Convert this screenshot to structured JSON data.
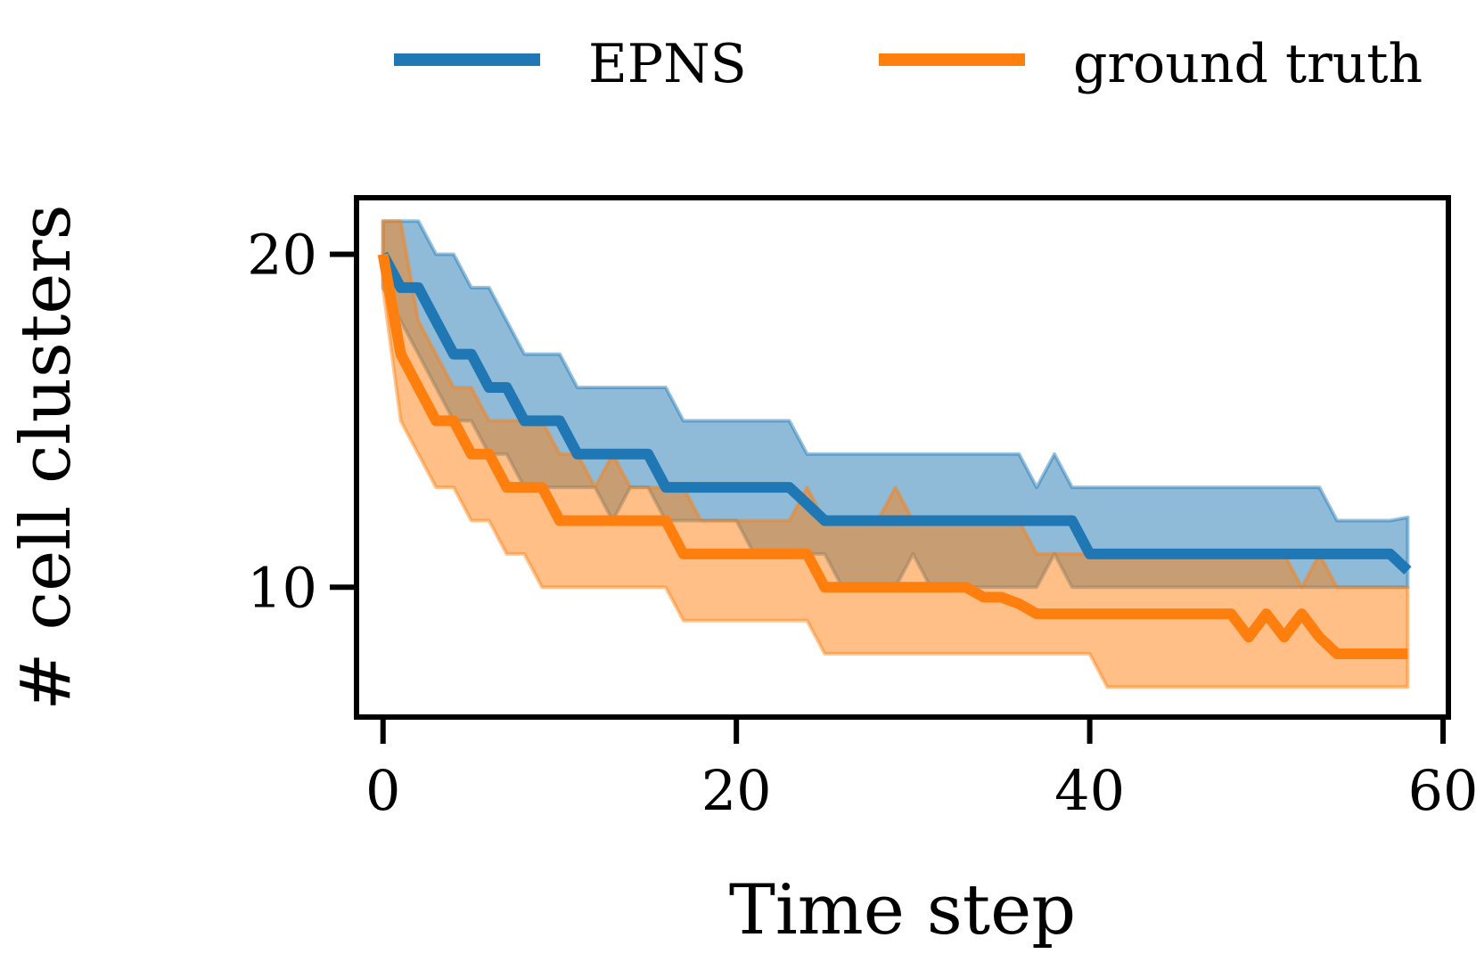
{
  "chart_data": {
    "type": "line",
    "title": "",
    "xlabel": "Time step",
    "ylabel": "# cell clusters",
    "xlim": [
      -1.5,
      60.3
    ],
    "ylim": [
      6.1,
      21.7
    ],
    "xticks": [
      0,
      20,
      40,
      60
    ],
    "xtick_labels": [
      "0",
      "20",
      "40",
      "60"
    ],
    "yticks": [
      10,
      20
    ],
    "ytick_labels": [
      "10",
      "20"
    ],
    "grid": false,
    "legend_placement": "top-center",
    "series": [
      {
        "name": "EPNS",
        "color": "#1f77b4",
        "x": [
          0,
          1,
          2,
          3,
          4,
          5,
          6,
          7,
          8,
          9,
          10,
          11,
          12,
          13,
          14,
          15,
          16,
          17,
          18,
          19,
          20,
          21,
          22,
          23,
          24,
          25,
          26,
          27,
          28,
          29,
          30,
          31,
          32,
          33,
          34,
          35,
          36,
          37,
          38,
          39,
          40,
          41,
          42,
          43,
          44,
          45,
          46,
          47,
          48,
          49,
          50,
          51,
          52,
          53,
          54,
          55,
          56,
          57,
          58
        ],
        "y": [
          20,
          19,
          19,
          18,
          17,
          17,
          16,
          16,
          15,
          15,
          15,
          14,
          14,
          14,
          14,
          14,
          13,
          13,
          13,
          13,
          13,
          13,
          13,
          13,
          12.5,
          12,
          12,
          12,
          12,
          12,
          12,
          12,
          12,
          12,
          12,
          12,
          12,
          12,
          12,
          12,
          11,
          11,
          11,
          11,
          11,
          11,
          11,
          11,
          11,
          11,
          11,
          11,
          11,
          11,
          11,
          11,
          11,
          11,
          10.5
        ],
        "upper": [
          21,
          21,
          21,
          20,
          20,
          19,
          19,
          18,
          17,
          17,
          17,
          16,
          16,
          16,
          16,
          16,
          16,
          15,
          15,
          15,
          15,
          15,
          15,
          15,
          14,
          14,
          14,
          14,
          14,
          14,
          14,
          14,
          14,
          14,
          14,
          14,
          14,
          13,
          14,
          13,
          13,
          13,
          13,
          13,
          13,
          13,
          13,
          13,
          13,
          13,
          13,
          13,
          13,
          13,
          12,
          12,
          12,
          12,
          12.1
        ],
        "lower": [
          19,
          18,
          17,
          16,
          15,
          15,
          14,
          14,
          13,
          13,
          13,
          13,
          13,
          12,
          13,
          13,
          12,
          12,
          12,
          12,
          12,
          11,
          11,
          11,
          11,
          11,
          10,
          10,
          10,
          10,
          11,
          10,
          10,
          10,
          10,
          10,
          10,
          10,
          11,
          10,
          10,
          10,
          10,
          10,
          10,
          10,
          10,
          10,
          10,
          10,
          10,
          10,
          10,
          10,
          10,
          10,
          10,
          10,
          10
        ]
      },
      {
        "name": "ground truth",
        "color": "#ff7f0e",
        "x": [
          0,
          1,
          2,
          3,
          4,
          5,
          6,
          7,
          8,
          9,
          10,
          11,
          12,
          13,
          14,
          15,
          16,
          17,
          18,
          19,
          20,
          21,
          22,
          23,
          24,
          25,
          26,
          27,
          28,
          29,
          30,
          31,
          32,
          33,
          34,
          35,
          36,
          37,
          38,
          39,
          40,
          41,
          42,
          43,
          44,
          45,
          46,
          47,
          48,
          49,
          50,
          51,
          52,
          53,
          54,
          55,
          56,
          57,
          58
        ],
        "y": [
          20,
          17,
          16,
          15,
          15,
          14,
          14,
          13,
          13,
          13,
          12,
          12,
          12,
          12,
          12,
          12,
          12,
          11,
          11,
          11,
          11,
          11,
          11,
          11,
          11,
          10,
          10,
          10,
          10,
          10,
          10,
          10,
          10,
          10,
          9.7,
          9.7,
          9.5,
          9.2,
          9.2,
          9.2,
          9.2,
          9.2,
          9.2,
          9.2,
          9.2,
          9.2,
          9.2,
          9.2,
          9.2,
          8.5,
          9.2,
          8.5,
          9.2,
          8.5,
          8,
          8,
          8,
          8,
          8
        ],
        "upper": [
          21,
          21,
          18,
          17,
          16,
          16,
          15,
          15,
          15,
          15,
          14,
          14,
          13,
          14,
          13,
          13,
          13,
          13,
          12,
          12,
          12,
          12,
          12,
          12,
          13,
          12,
          12,
          12,
          12,
          13,
          12,
          12,
          12,
          12,
          12,
          12,
          12,
          11,
          11,
          11,
          11,
          11,
          11,
          11,
          11,
          11,
          11,
          11,
          11,
          11,
          11,
          11,
          10,
          11,
          10,
          10,
          10,
          10,
          10
        ],
        "lower": [
          19,
          15,
          14,
          13,
          13,
          12,
          12,
          11,
          11,
          10,
          10,
          10,
          10,
          10,
          10,
          10,
          10,
          9,
          9,
          9,
          9,
          9,
          9,
          9,
          9,
          8,
          8,
          8,
          8,
          8,
          8,
          8,
          8,
          8,
          8,
          8,
          8,
          8,
          8,
          8,
          8,
          7,
          7,
          7,
          7,
          7,
          7,
          7,
          7,
          7,
          7,
          7,
          7,
          7,
          7,
          7,
          7,
          7,
          7
        ]
      }
    ]
  }
}
